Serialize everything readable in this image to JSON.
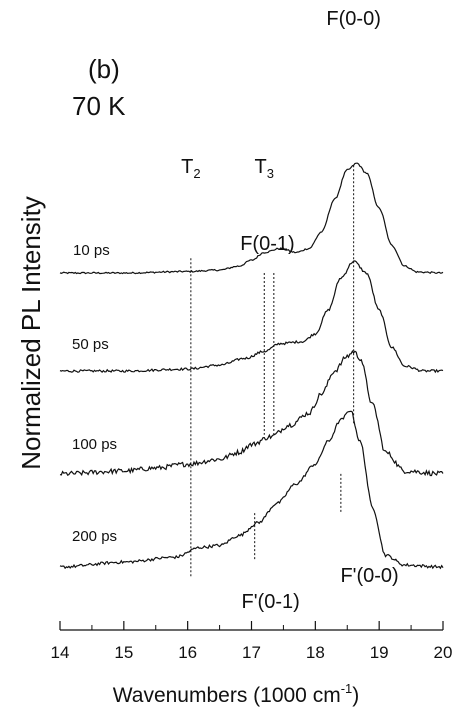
{
  "chart_data": {
    "type": "line",
    "title": "",
    "panel_label": "(b)",
    "temperature_label": "70 K",
    "xlabel_main": "Wavenumbers (1000 cm",
    "xlabel_sup": "-1",
    "xlabel_end": ")",
    "ylabel": "Normalized PL Intensity",
    "xlim": [
      14,
      20
    ],
    "x_ticks": [
      14,
      15,
      16,
      17,
      18,
      19,
      20
    ],
    "y_ticks": [],
    "grid": false,
    "line_color": "#111111",
    "series": [
      {
        "name": "10 ps",
        "offset": 3.0,
        "noise": 0.008,
        "x": [
          14.0,
          15.0,
          16.0,
          16.5,
          16.8,
          17.0,
          17.2,
          17.45,
          17.7,
          17.9,
          18.1,
          18.3,
          18.5,
          18.65,
          18.8,
          19.0,
          19.2,
          19.4,
          19.6,
          20.0
        ],
        "y": [
          0.0,
          0.0,
          0.015,
          0.03,
          0.07,
          0.13,
          0.21,
          0.25,
          0.21,
          0.25,
          0.42,
          0.75,
          1.05,
          1.12,
          1.02,
          0.66,
          0.28,
          0.07,
          0.01,
          0.0
        ]
      },
      {
        "name": "50 ps",
        "offset": 2.0,
        "noise": 0.012,
        "x": [
          14.0,
          15.0,
          16.0,
          16.5,
          16.9,
          17.2,
          17.45,
          17.8,
          18.0,
          18.2,
          18.4,
          18.6,
          18.8,
          19.0,
          19.2,
          19.4,
          19.7,
          20.0
        ],
        "y": [
          0.0,
          0.0,
          0.02,
          0.06,
          0.13,
          0.2,
          0.28,
          0.3,
          0.38,
          0.62,
          0.95,
          1.12,
          1.0,
          0.62,
          0.24,
          0.05,
          0.0,
          0.0
        ]
      },
      {
        "name": "100 ps",
        "offset": 0.95,
        "noise": 0.025,
        "x": [
          14.0,
          15.0,
          15.5,
          16.0,
          16.5,
          16.8,
          17.0,
          17.3,
          17.6,
          17.9,
          18.1,
          18.3,
          18.5,
          18.6,
          18.7,
          18.9,
          19.1,
          19.4,
          20.0
        ],
        "y": [
          0.0,
          0.03,
          0.06,
          0.1,
          0.15,
          0.22,
          0.3,
          0.38,
          0.5,
          0.62,
          0.82,
          1.05,
          1.2,
          1.25,
          1.18,
          0.7,
          0.22,
          0.03,
          0.0
        ]
      },
      {
        "name": "200 ps",
        "offset": 0.0,
        "noise": 0.015,
        "x": [
          14.0,
          15.0,
          15.8,
          16.2,
          16.5,
          16.8,
          17.1,
          17.4,
          17.7,
          18.0,
          18.2,
          18.4,
          18.55,
          18.7,
          18.9,
          19.1,
          19.4,
          20.0
        ],
        "y": [
          0.0,
          0.05,
          0.1,
          0.2,
          0.22,
          0.32,
          0.45,
          0.65,
          0.85,
          1.05,
          1.28,
          1.5,
          1.6,
          1.28,
          0.6,
          0.12,
          0.02,
          0.0
        ]
      }
    ],
    "annotations": [
      {
        "name": "T2",
        "main": "T",
        "sub": "2",
        "x": 16.05
      },
      {
        "name": "T3",
        "main": "T",
        "sub": "3",
        "x": 17.2
      },
      {
        "name": "F(0-1)",
        "main": "F(0-1)",
        "sub": "",
        "x": 17.35
      },
      {
        "name": "F(0-0)",
        "main": "F(0-0)",
        "sub": "",
        "x": 18.6
      },
      {
        "name": "F'(0-1)",
        "main": "F'(0-1)",
        "sub": "",
        "x": 17.05
      },
      {
        "name": "F'(0-0)",
        "main": "F'(0-0)",
        "sub": "",
        "x": 18.4
      }
    ]
  }
}
